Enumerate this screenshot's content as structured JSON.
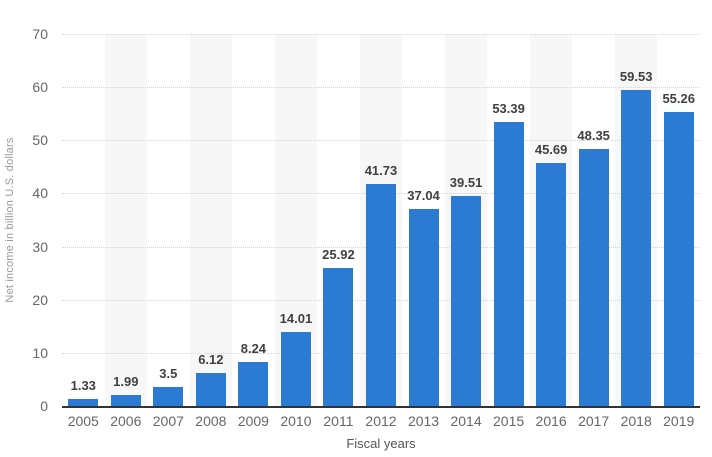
{
  "chart_data": {
    "type": "bar",
    "categories": [
      "2005",
      "2006",
      "2007",
      "2008",
      "2009",
      "2010",
      "2011",
      "2012",
      "2013",
      "2014",
      "2015",
      "2016",
      "2017",
      "2018",
      "2019"
    ],
    "values": [
      1.33,
      1.99,
      3.5,
      6.12,
      8.24,
      14.01,
      25.92,
      41.73,
      37.04,
      39.51,
      53.39,
      45.69,
      48.35,
      59.53,
      55.26
    ],
    "value_labels": [
      "1.33",
      "1.99",
      "3.5",
      "6.12",
      "8.24",
      "14.01",
      "25.92",
      "41.73",
      "37.04",
      "39.51",
      "53.39",
      "45.69",
      "48.35",
      "59.53",
      "55.26"
    ],
    "title": "",
    "xlabel": "Fiscal years",
    "ylabel": "Net income in billion U.S. dollars",
    "ylim": [
      0,
      70
    ],
    "yticks": [
      0,
      10,
      20,
      30,
      40,
      50,
      60,
      70
    ],
    "grid": "horizontal-dotted",
    "legend": "none",
    "colors": {
      "bar": "#2b7bd3",
      "plot_band": "#f7f7f7",
      "value_label": "#404040",
      "axis_text": "#666666",
      "axis_title": "#999999",
      "gridline": "#d4d4d4",
      "baseline": "#333333",
      "background": "#ffffff"
    }
  }
}
